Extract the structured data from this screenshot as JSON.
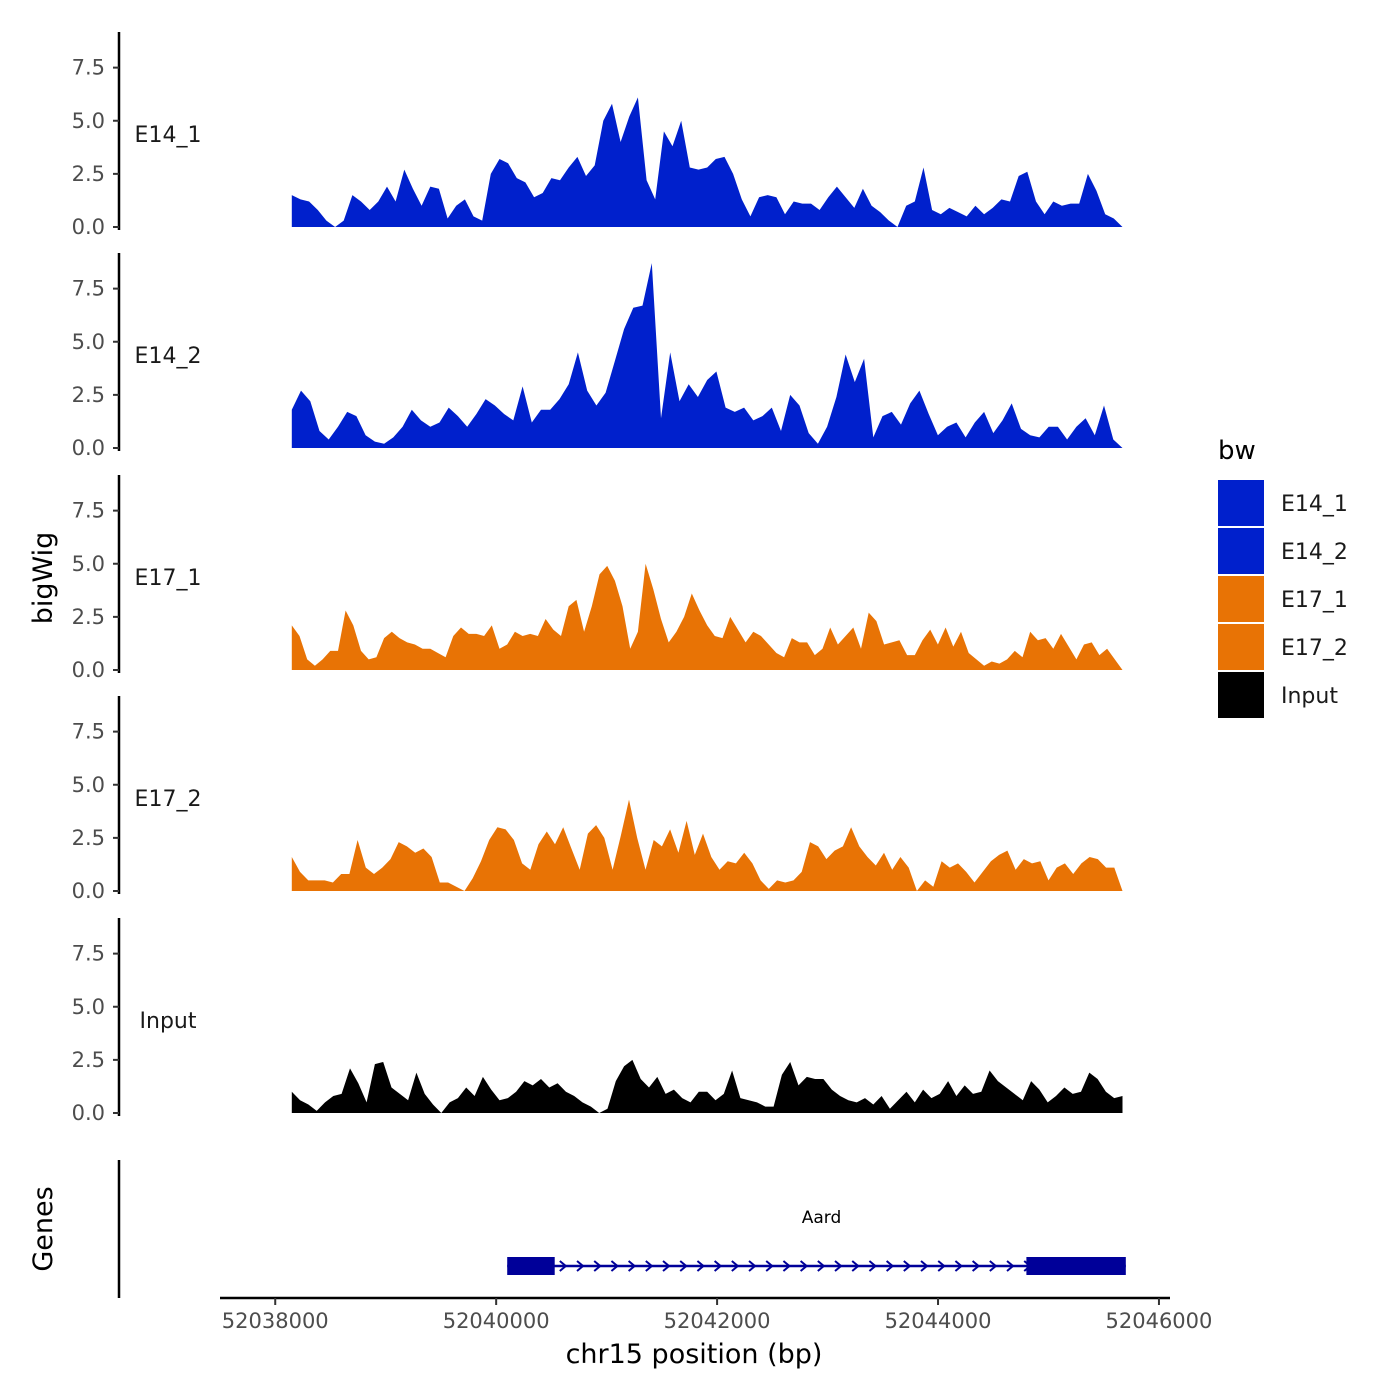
{
  "chart_data": {
    "type": "area",
    "title": "",
    "chromosome": "chr15",
    "xlabel": "chr15 position (bp)",
    "ylabel": "bigWig",
    "xlim": [
      52037500,
      52046100
    ],
    "data_range": [
      52038150,
      52045670
    ],
    "ylim": [
      0,
      9.2
    ],
    "yticks": [
      0.0,
      2.5,
      5.0,
      7.5
    ],
    "ytick_labels": [
      "0.0",
      "2.5",
      "5.0",
      "7.5"
    ],
    "xticks": [
      52038000,
      52040000,
      52042000,
      52044000,
      52046000
    ],
    "xtick_labels": [
      "52038000",
      "52040000",
      "52042000",
      "52044000",
      "52046000"
    ],
    "grid": false,
    "legend": {
      "title": "bw",
      "position": "right",
      "entries": [
        {
          "name": "E14_1",
          "color": "#0020cc"
        },
        {
          "name": "E14_2",
          "color": "#0020cc"
        },
        {
          "name": "E17_1",
          "color": "#e87305"
        },
        {
          "name": "E17_2",
          "color": "#e87305"
        },
        {
          "name": "Input",
          "color": "#000000"
        }
      ]
    },
    "series": [
      {
        "name": "E14_1",
        "label": "E14_1",
        "color": "#0020cc",
        "values": [
          1.5,
          1.3,
          1.2,
          0.8,
          0.3,
          0.0,
          0.3,
          1.5,
          1.2,
          0.8,
          1.2,
          1.9,
          1.2,
          2.7,
          1.8,
          1.0,
          1.9,
          1.8,
          0.4,
          1.0,
          1.3,
          0.5,
          0.3,
          2.5,
          3.2,
          3.0,
          2.3,
          2.1,
          1.4,
          1.6,
          2.3,
          2.2,
          2.8,
          3.3,
          2.4,
          2.9,
          5.0,
          5.8,
          4.0,
          5.2,
          6.1,
          2.2,
          1.3,
          4.5,
          3.8,
          5.0,
          2.8,
          2.7,
          2.8,
          3.2,
          3.3,
          2.5,
          1.3,
          0.5,
          1.4,
          1.5,
          1.4,
          0.6,
          1.2,
          1.1,
          1.1,
          0.8,
          1.4,
          1.9,
          1.4,
          0.9,
          1.8,
          1.0,
          0.7,
          0.3,
          0.0,
          1.0,
          1.2,
          2.8,
          0.8,
          0.6,
          0.9,
          0.7,
          0.5,
          1.0,
          0.6,
          0.9,
          1.3,
          1.2,
          2.4,
          2.6,
          1.2,
          0.6,
          1.2,
          1.0,
          1.1,
          1.1,
          2.5,
          1.7,
          0.6,
          0.4,
          0.0
        ]
      },
      {
        "name": "E14_2",
        "label": "E14_2",
        "color": "#0020cc",
        "values": [
          1.8,
          2.7,
          2.2,
          0.8,
          0.4,
          1.0,
          1.7,
          1.5,
          0.6,
          0.3,
          0.2,
          0.5,
          1.0,
          1.8,
          1.3,
          1.0,
          1.2,
          1.9,
          1.5,
          1.0,
          1.6,
          2.3,
          2.0,
          1.6,
          1.3,
          2.9,
          1.2,
          1.8,
          1.8,
          2.3,
          3.0,
          4.5,
          2.7,
          2.0,
          2.6,
          4.1,
          5.6,
          6.6,
          6.7,
          8.7,
          1.4,
          4.5,
          2.2,
          3.0,
          2.4,
          3.2,
          3.6,
          1.9,
          1.7,
          1.9,
          1.3,
          1.5,
          1.9,
          0.8,
          2.5,
          2.0,
          0.7,
          0.2,
          1.0,
          2.4,
          4.4,
          3.1,
          4.2,
          0.5,
          1.5,
          1.7,
          1.1,
          2.1,
          2.7,
          1.6,
          0.6,
          1.0,
          1.2,
          0.5,
          1.2,
          1.7,
          0.7,
          1.3,
          2.1,
          0.9,
          0.6,
          0.5,
          1.0,
          1.0,
          0.4,
          1.0,
          1.4,
          0.6,
          2.0,
          0.4,
          0.0
        ]
      },
      {
        "name": "E17_1",
        "label": "E17_1",
        "color": "#e87305",
        "values": [
          2.1,
          1.6,
          0.5,
          0.2,
          0.5,
          0.9,
          0.9,
          2.8,
          2.1,
          0.9,
          0.5,
          0.6,
          1.5,
          1.8,
          1.5,
          1.3,
          1.2,
          1.0,
          1.0,
          0.8,
          0.6,
          1.6,
          2.0,
          1.7,
          1.7,
          1.6,
          2.1,
          1.0,
          1.2,
          1.8,
          1.6,
          1.7,
          1.6,
          2.4,
          1.9,
          1.6,
          3.0,
          3.3,
          1.8,
          3.0,
          4.5,
          4.9,
          4.2,
          3.0,
          1.0,
          1.8,
          5.0,
          3.8,
          2.4,
          1.3,
          1.8,
          2.5,
          3.6,
          2.8,
          2.1,
          1.6,
          1.5,
          2.5,
          1.9,
          1.3,
          1.8,
          1.6,
          1.2,
          0.8,
          0.6,
          1.5,
          1.3,
          1.3,
          0.7,
          1.0,
          2.0,
          1.2,
          1.6,
          2.0,
          1.0,
          2.7,
          2.3,
          1.2,
          1.3,
          1.4,
          0.7,
          0.7,
          1.4,
          1.9,
          1.2,
          2.0,
          1.1,
          1.8,
          0.8,
          0.5,
          0.2,
          0.4,
          0.3,
          0.5,
          0.9,
          0.6,
          1.8,
          1.4,
          1.5,
          1.0,
          1.7,
          1.1,
          0.5,
          1.2,
          1.3,
          0.7,
          1.0,
          0.5,
          0.0
        ]
      },
      {
        "name": "E17_2",
        "label": "E17_2",
        "color": "#e87305",
        "values": [
          1.6,
          0.9,
          0.5,
          0.5,
          0.5,
          0.4,
          0.8,
          0.8,
          2.4,
          1.1,
          0.8,
          1.1,
          1.5,
          2.3,
          2.1,
          1.8,
          2.0,
          1.6,
          0.4,
          0.4,
          0.2,
          0.0,
          0.6,
          1.4,
          2.4,
          3.0,
          2.9,
          2.4,
          1.3,
          1.0,
          2.2,
          2.8,
          2.2,
          3.0,
          2.0,
          1.0,
          2.7,
          3.1,
          2.5,
          1.0,
          2.6,
          4.3,
          2.5,
          1.0,
          2.4,
          2.1,
          2.9,
          1.8,
          3.3,
          1.7,
          2.7,
          1.6,
          1.0,
          1.4,
          1.3,
          1.8,
          1.3,
          0.5,
          0.1,
          0.5,
          0.4,
          0.5,
          0.9,
          2.3,
          2.1,
          1.5,
          1.9,
          2.1,
          3.0,
          2.1,
          1.6,
          1.2,
          1.8,
          1.0,
          1.6,
          1.1,
          0.0,
          0.5,
          0.2,
          1.4,
          1.1,
          1.3,
          0.9,
          0.4,
          0.9,
          1.4,
          1.7,
          1.9,
          1.0,
          1.5,
          1.3,
          1.4,
          0.5,
          1.1,
          1.3,
          0.8,
          1.3,
          1.6,
          1.5,
          1.1,
          1.1,
          0.0
        ]
      },
      {
        "name": "Input",
        "label": "Input",
        "color": "#000000",
        "values": [
          1.0,
          0.6,
          0.4,
          0.1,
          0.5,
          0.8,
          0.9,
          2.1,
          1.4,
          0.5,
          2.3,
          2.4,
          1.2,
          0.9,
          0.6,
          1.9,
          0.9,
          0.4,
          0.0,
          0.5,
          0.7,
          1.2,
          0.8,
          1.7,
          1.1,
          0.6,
          0.7,
          1.0,
          1.5,
          1.3,
          1.6,
          1.2,
          1.4,
          1.0,
          0.8,
          0.5,
          0.3,
          0.0,
          0.2,
          1.5,
          2.2,
          2.5,
          1.6,
          1.2,
          1.7,
          0.9,
          1.1,
          0.7,
          0.5,
          1.0,
          1.0,
          0.6,
          0.9,
          2.0,
          0.7,
          0.6,
          0.5,
          0.3,
          0.3,
          1.8,
          2.4,
          1.3,
          1.7,
          1.6,
          1.6,
          1.1,
          0.8,
          0.6,
          0.5,
          0.7,
          0.4,
          0.8,
          0.2,
          0.6,
          1.0,
          0.5,
          1.1,
          0.7,
          0.9,
          1.5,
          0.8,
          1.3,
          0.9,
          1.0,
          2.0,
          1.5,
          1.2,
          0.9,
          0.6,
          1.5,
          1.1,
          0.5,
          0.8,
          1.2,
          0.9,
          1.0,
          1.9,
          1.6,
          1.0,
          0.7,
          0.8
        ]
      }
    ],
    "genes_track": {
      "label": "Genes",
      "genes": [
        {
          "name": "Aard",
          "start": 52040100,
          "end": 52045700,
          "strand": "+",
          "color": "#000099",
          "exons": [
            [
              52040100,
              52040530
            ],
            [
              52044800,
              52045700
            ]
          ]
        }
      ]
    }
  }
}
